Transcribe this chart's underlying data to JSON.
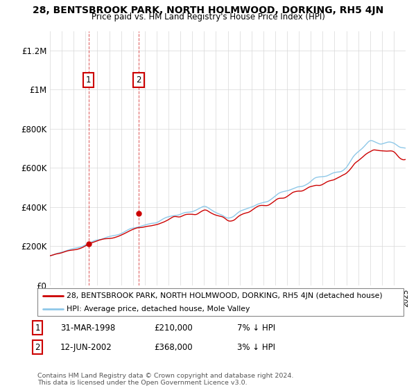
{
  "title": "28, BENTSBROOK PARK, NORTH HOLMWOOD, DORKING, RH5 4JN",
  "subtitle": "Price paid vs. HM Land Registry's House Price Index (HPI)",
  "legend_line1": "28, BENTSBROOK PARK, NORTH HOLMWOOD, DORKING, RH5 4JN (detached house)",
  "legend_line2": "HPI: Average price, detached house, Mole Valley",
  "transaction1_date": "31-MAR-1998",
  "transaction1_price": "£210,000",
  "transaction1_hpi": "7% ↓ HPI",
  "transaction2_date": "12-JUN-2002",
  "transaction2_price": "£368,000",
  "transaction2_hpi": "3% ↓ HPI",
  "footer": "Contains HM Land Registry data © Crown copyright and database right 2024.\nThis data is licensed under the Open Government Licence v3.0.",
  "hpi_color": "#8ec8e8",
  "price_color": "#cc0000",
  "marker_color": "#cc0000",
  "ylim": [
    0,
    1300000
  ],
  "yticks": [
    0,
    200000,
    400000,
    600000,
    800000,
    1000000,
    1200000
  ],
  "ytick_labels": [
    "£0",
    "£200K",
    "£400K",
    "£600K",
    "£800K",
    "£1M",
    "£1.2M"
  ],
  "xstart": 1995,
  "xend": 2025
}
